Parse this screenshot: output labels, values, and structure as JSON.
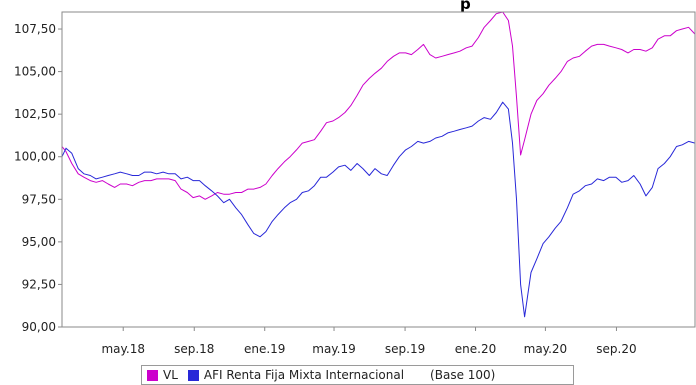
{
  "chart_data": {
    "type": "line",
    "title": "p",
    "xlabel": "",
    "ylabel": "",
    "x_range": [
      "2018-01-15",
      "2021-01-15"
    ],
    "ylim": [
      90,
      108.5
    ],
    "yticks": [
      90,
      92.5,
      95,
      97.5,
      100,
      102.5,
      105,
      107.5
    ],
    "ytick_labels": [
      "90,00",
      "92,50",
      "95,00",
      "97,50",
      "100,00",
      "102,50",
      "105,00",
      "107,50"
    ],
    "xticks": [
      "2018-05-01",
      "2018-09-01",
      "2019-01-01",
      "2019-05-01",
      "2019-09-01",
      "2020-01-01",
      "2020-05-01",
      "2020-09-01"
    ],
    "xtick_labels": [
      "may.18",
      "sep.18",
      "ene.19",
      "may.19",
      "sep.19",
      "ene.20",
      "may.20",
      "sep.20"
    ],
    "grid": false,
    "legend_position": "bottom",
    "legend_note": "(Base 100)",
    "series": [
      {
        "name": "VL",
        "color": "#cc00cc",
        "points": [
          [
            "2018-01-15",
            100.6
          ],
          [
            "2018-01-22",
            100.3
          ],
          [
            "2018-02-01",
            99.6
          ],
          [
            "2018-02-12",
            99.0
          ],
          [
            "2018-02-22",
            98.8
          ],
          [
            "2018-03-05",
            98.6
          ],
          [
            "2018-03-15",
            98.5
          ],
          [
            "2018-03-26",
            98.6
          ],
          [
            "2018-04-05",
            98.4
          ],
          [
            "2018-04-16",
            98.2
          ],
          [
            "2018-04-26",
            98.4
          ],
          [
            "2018-05-07",
            98.4
          ],
          [
            "2018-05-17",
            98.3
          ],
          [
            "2018-05-28",
            98.5
          ],
          [
            "2018-06-07",
            98.6
          ],
          [
            "2018-06-18",
            98.6
          ],
          [
            "2018-06-28",
            98.7
          ],
          [
            "2018-07-09",
            98.7
          ],
          [
            "2018-07-19",
            98.7
          ],
          [
            "2018-07-30",
            98.6
          ],
          [
            "2018-08-09",
            98.1
          ],
          [
            "2018-08-20",
            97.9
          ],
          [
            "2018-08-30",
            97.6
          ],
          [
            "2018-09-10",
            97.7
          ],
          [
            "2018-09-20",
            97.5
          ],
          [
            "2018-10-01",
            97.7
          ],
          [
            "2018-10-11",
            97.9
          ],
          [
            "2018-10-22",
            97.8
          ],
          [
            "2018-11-01",
            97.8
          ],
          [
            "2018-11-12",
            97.9
          ],
          [
            "2018-11-22",
            97.9
          ],
          [
            "2018-12-03",
            98.1
          ],
          [
            "2018-12-13",
            98.1
          ],
          [
            "2018-12-24",
            98.2
          ],
          [
            "2019-01-03",
            98.4
          ],
          [
            "2019-01-14",
            98.9
          ],
          [
            "2019-01-24",
            99.3
          ],
          [
            "2019-02-04",
            99.7
          ],
          [
            "2019-02-14",
            100.0
          ],
          [
            "2019-02-25",
            100.4
          ],
          [
            "2019-03-07",
            100.8
          ],
          [
            "2019-03-18",
            100.9
          ],
          [
            "2019-03-28",
            101.0
          ],
          [
            "2019-04-08",
            101.5
          ],
          [
            "2019-04-18",
            102.0
          ],
          [
            "2019-04-29",
            102.1
          ],
          [
            "2019-05-09",
            102.3
          ],
          [
            "2019-05-20",
            102.6
          ],
          [
            "2019-05-30",
            103.0
          ],
          [
            "2019-06-10",
            103.6
          ],
          [
            "2019-06-20",
            104.2
          ],
          [
            "2019-07-01",
            104.6
          ],
          [
            "2019-07-11",
            104.9
          ],
          [
            "2019-07-22",
            105.2
          ],
          [
            "2019-08-01",
            105.6
          ],
          [
            "2019-08-12",
            105.9
          ],
          [
            "2019-08-22",
            106.1
          ],
          [
            "2019-09-02",
            106.1
          ],
          [
            "2019-09-12",
            106.0
          ],
          [
            "2019-09-23",
            106.3
          ],
          [
            "2019-10-03",
            106.6
          ],
          [
            "2019-10-14",
            106.0
          ],
          [
            "2019-10-24",
            105.8
          ],
          [
            "2019-11-04",
            105.9
          ],
          [
            "2019-11-14",
            106.0
          ],
          [
            "2019-11-25",
            106.1
          ],
          [
            "2019-12-05",
            106.2
          ],
          [
            "2019-12-16",
            106.4
          ],
          [
            "2019-12-26",
            106.5
          ],
          [
            "2020-01-06",
            107.0
          ],
          [
            "2020-01-16",
            107.6
          ],
          [
            "2020-01-27",
            108.0
          ],
          [
            "2020-02-06",
            108.4
          ],
          [
            "2020-02-17",
            108.5
          ],
          [
            "2020-02-27",
            108.0
          ],
          [
            "2020-03-05",
            106.5
          ],
          [
            "2020-03-12",
            103.5
          ],
          [
            "2020-03-19",
            100.1
          ],
          [
            "2020-03-26",
            101.0
          ],
          [
            "2020-04-06",
            102.5
          ],
          [
            "2020-04-16",
            103.3
          ],
          [
            "2020-04-27",
            103.7
          ],
          [
            "2020-05-07",
            104.2
          ],
          [
            "2020-05-18",
            104.6
          ],
          [
            "2020-05-28",
            105.0
          ],
          [
            "2020-06-08",
            105.6
          ],
          [
            "2020-06-18",
            105.8
          ],
          [
            "2020-06-29",
            105.9
          ],
          [
            "2020-07-09",
            106.2
          ],
          [
            "2020-07-20",
            106.5
          ],
          [
            "2020-07-30",
            106.6
          ],
          [
            "2020-08-10",
            106.6
          ],
          [
            "2020-08-20",
            106.5
          ],
          [
            "2020-08-31",
            106.4
          ],
          [
            "2020-09-10",
            106.3
          ],
          [
            "2020-09-21",
            106.1
          ],
          [
            "2020-10-01",
            106.3
          ],
          [
            "2020-10-12",
            106.3
          ],
          [
            "2020-10-22",
            106.2
          ],
          [
            "2020-11-02",
            106.4
          ],
          [
            "2020-11-12",
            106.9
          ],
          [
            "2020-11-23",
            107.1
          ],
          [
            "2020-12-03",
            107.1
          ],
          [
            "2020-12-14",
            107.4
          ],
          [
            "2020-12-24",
            107.5
          ],
          [
            "2021-01-04",
            107.6
          ],
          [
            "2021-01-15",
            107.2
          ]
        ]
      },
      {
        "name": "AFI Renta Fija Mixta Internacional",
        "color": "#2828d8",
        "points": [
          [
            "2018-01-15",
            100.0
          ],
          [
            "2018-01-22",
            100.5
          ],
          [
            "2018-02-01",
            100.2
          ],
          [
            "2018-02-12",
            99.3
          ],
          [
            "2018-02-22",
            99.0
          ],
          [
            "2018-03-05",
            98.9
          ],
          [
            "2018-03-15",
            98.7
          ],
          [
            "2018-03-26",
            98.8
          ],
          [
            "2018-04-05",
            98.9
          ],
          [
            "2018-04-16",
            99.0
          ],
          [
            "2018-04-26",
            99.1
          ],
          [
            "2018-05-07",
            99.0
          ],
          [
            "2018-05-17",
            98.9
          ],
          [
            "2018-05-28",
            98.9
          ],
          [
            "2018-06-07",
            99.1
          ],
          [
            "2018-06-18",
            99.1
          ],
          [
            "2018-06-28",
            99.0
          ],
          [
            "2018-07-09",
            99.1
          ],
          [
            "2018-07-19",
            99.0
          ],
          [
            "2018-07-30",
            99.0
          ],
          [
            "2018-08-09",
            98.7
          ],
          [
            "2018-08-20",
            98.8
          ],
          [
            "2018-08-30",
            98.6
          ],
          [
            "2018-09-10",
            98.6
          ],
          [
            "2018-09-20",
            98.3
          ],
          [
            "2018-10-01",
            98.0
          ],
          [
            "2018-10-11",
            97.7
          ],
          [
            "2018-10-22",
            97.3
          ],
          [
            "2018-11-01",
            97.5
          ],
          [
            "2018-11-12",
            97.0
          ],
          [
            "2018-11-22",
            96.6
          ],
          [
            "2018-12-03",
            96.0
          ],
          [
            "2018-12-13",
            95.5
          ],
          [
            "2018-12-24",
            95.3
          ],
          [
            "2019-01-03",
            95.6
          ],
          [
            "2019-01-14",
            96.2
          ],
          [
            "2019-01-24",
            96.6
          ],
          [
            "2019-02-04",
            97.0
          ],
          [
            "2019-02-14",
            97.3
          ],
          [
            "2019-02-25",
            97.5
          ],
          [
            "2019-03-07",
            97.9
          ],
          [
            "2019-03-18",
            98.0
          ],
          [
            "2019-03-28",
            98.3
          ],
          [
            "2019-04-08",
            98.8
          ],
          [
            "2019-04-18",
            98.8
          ],
          [
            "2019-04-29",
            99.1
          ],
          [
            "2019-05-09",
            99.4
          ],
          [
            "2019-05-20",
            99.5
          ],
          [
            "2019-05-30",
            99.2
          ],
          [
            "2019-06-10",
            99.6
          ],
          [
            "2019-06-20",
            99.3
          ],
          [
            "2019-07-01",
            98.9
          ],
          [
            "2019-07-11",
            99.3
          ],
          [
            "2019-07-22",
            99.0
          ],
          [
            "2019-08-01",
            98.9
          ],
          [
            "2019-08-12",
            99.5
          ],
          [
            "2019-08-22",
            100.0
          ],
          [
            "2019-09-02",
            100.4
          ],
          [
            "2019-09-12",
            100.6
          ],
          [
            "2019-09-23",
            100.9
          ],
          [
            "2019-10-03",
            100.8
          ],
          [
            "2019-10-14",
            100.9
          ],
          [
            "2019-10-24",
            101.1
          ],
          [
            "2019-11-04",
            101.2
          ],
          [
            "2019-11-14",
            101.4
          ],
          [
            "2019-11-25",
            101.5
          ],
          [
            "2019-12-05",
            101.6
          ],
          [
            "2019-12-16",
            101.7
          ],
          [
            "2019-12-26",
            101.8
          ],
          [
            "2020-01-06",
            102.1
          ],
          [
            "2020-01-16",
            102.3
          ],
          [
            "2020-01-27",
            102.2
          ],
          [
            "2020-02-06",
            102.6
          ],
          [
            "2020-02-17",
            103.2
          ],
          [
            "2020-02-27",
            102.8
          ],
          [
            "2020-03-05",
            100.8
          ],
          [
            "2020-03-12",
            97.5
          ],
          [
            "2020-03-19",
            92.5
          ],
          [
            "2020-03-26",
            90.6
          ],
          [
            "2020-04-06",
            93.2
          ],
          [
            "2020-04-16",
            94.0
          ],
          [
            "2020-04-27",
            94.9
          ],
          [
            "2020-05-07",
            95.3
          ],
          [
            "2020-05-18",
            95.8
          ],
          [
            "2020-05-28",
            96.2
          ],
          [
            "2020-06-08",
            97.0
          ],
          [
            "2020-06-18",
            97.8
          ],
          [
            "2020-06-29",
            98.0
          ],
          [
            "2020-07-09",
            98.3
          ],
          [
            "2020-07-20",
            98.4
          ],
          [
            "2020-07-30",
            98.7
          ],
          [
            "2020-08-10",
            98.6
          ],
          [
            "2020-08-20",
            98.8
          ],
          [
            "2020-08-31",
            98.8
          ],
          [
            "2020-09-10",
            98.5
          ],
          [
            "2020-09-21",
            98.6
          ],
          [
            "2020-10-01",
            98.9
          ],
          [
            "2020-10-12",
            98.4
          ],
          [
            "2020-10-22",
            97.7
          ],
          [
            "2020-11-02",
            98.2
          ],
          [
            "2020-11-12",
            99.3
          ],
          [
            "2020-11-23",
            99.6
          ],
          [
            "2020-12-03",
            100.0
          ],
          [
            "2020-12-14",
            100.6
          ],
          [
            "2020-12-24",
            100.7
          ],
          [
            "2021-01-04",
            100.9
          ],
          [
            "2021-01-15",
            100.8
          ]
        ]
      }
    ]
  }
}
